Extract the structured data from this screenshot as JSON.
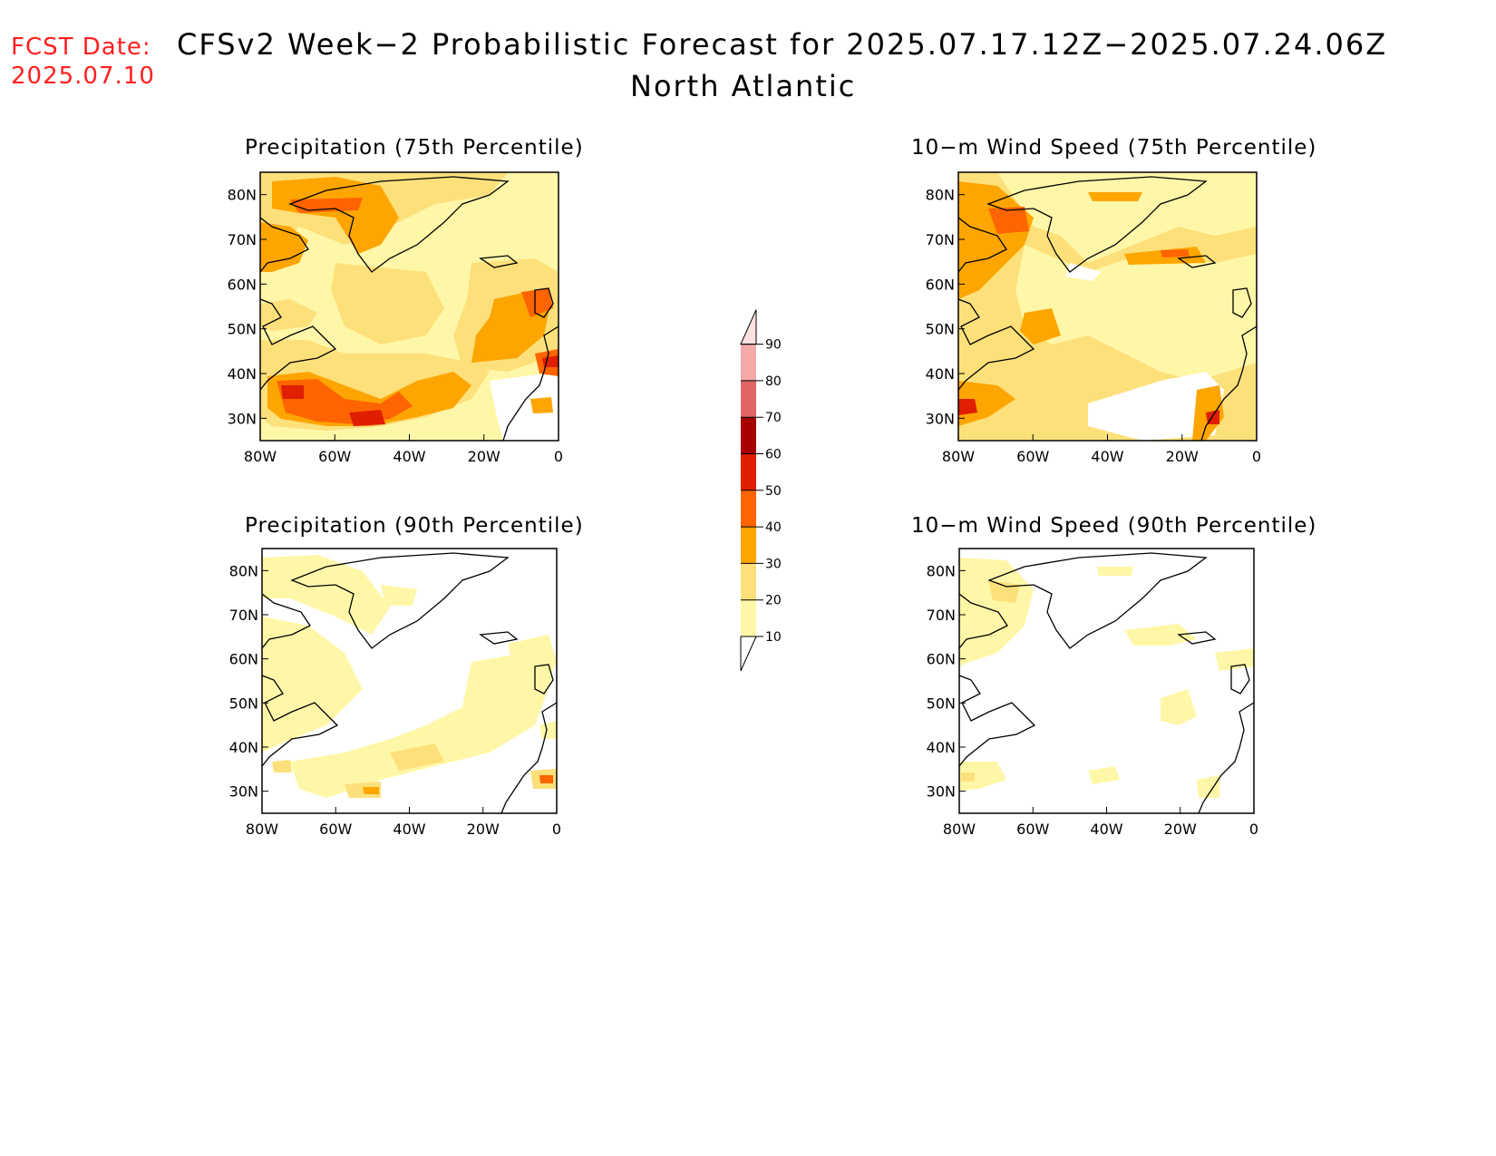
{
  "fcst_date": {
    "label": "FCST Date:",
    "value": "2025.07.10"
  },
  "title": {
    "line1": "CFSv2 Week−2 Probabilistic Forecast for 2025.07.17.12Z−2025.07.24.06Z",
    "line2": "North Atlantic"
  },
  "panels": [
    {
      "id": "precip75",
      "title": "Precipitation (75th Percentile)"
    },
    {
      "id": "wind75",
      "title": "10−m Wind Speed (75th Percentile)"
    },
    {
      "id": "precip90",
      "title": "Precipitation (90th Percentile)"
    },
    {
      "id": "wind90",
      "title": "10−m Wind Speed (90th Percentile)"
    }
  ],
  "axes": {
    "lat_labels": [
      "80N",
      "70N",
      "60N",
      "50N",
      "40N",
      "30N"
    ],
    "lon_labels": [
      "80W",
      "60W",
      "40W",
      "20W",
      "0"
    ]
  },
  "colorbar": {
    "levels": [
      "10",
      "20",
      "30",
      "40",
      "50",
      "60",
      "70",
      "80",
      "90"
    ],
    "colors": [
      "#fff7a8",
      "#fde07a",
      "#fea500",
      "#fe6400",
      "#e01e00",
      "#a60000",
      "#e06666",
      "#f4a8a8",
      "#fde0e0"
    ]
  }
}
